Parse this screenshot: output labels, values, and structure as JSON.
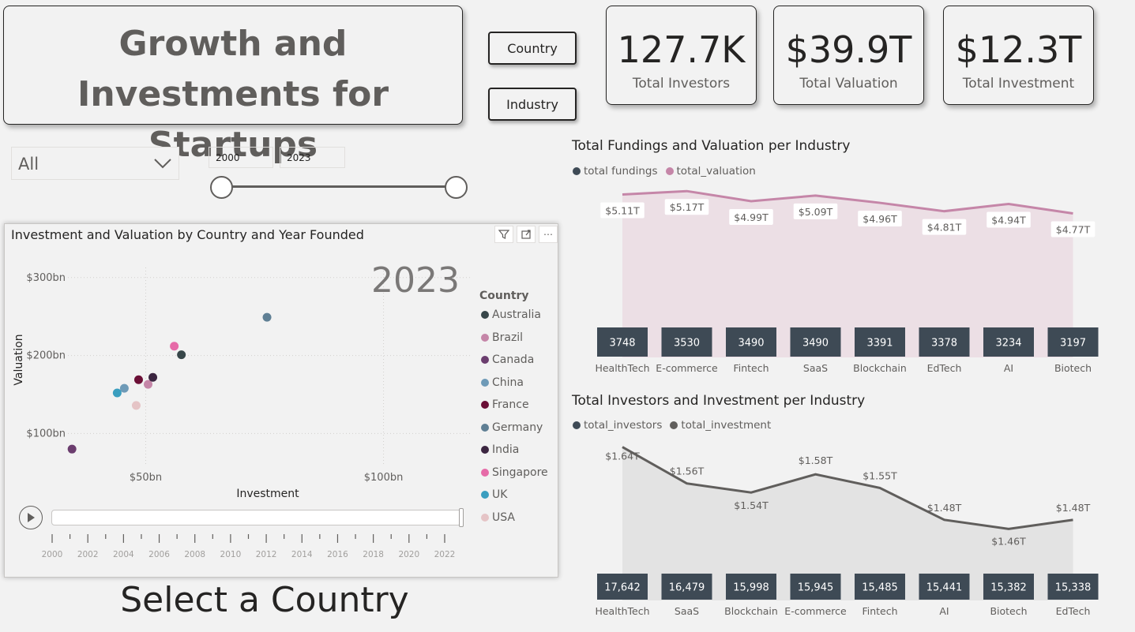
{
  "title": "Growth and Investments for Startups",
  "buttons": {
    "country": "Country",
    "industry": "Industry"
  },
  "kpis": [
    {
      "value": "127.7K",
      "label": "Total Investors"
    },
    {
      "value": "$39.9T",
      "label": "Total Valuation"
    },
    {
      "value": "$12.3T",
      "label": "Total Investment"
    }
  ],
  "filters": {
    "country_dropdown": "All",
    "year_range": {
      "start": "2000",
      "end": "2023",
      "value_start": 2000,
      "value_end": 2023
    }
  },
  "scatter": {
    "title": "Investment and Valuation by Country and Year Founded",
    "play_year": "2023",
    "legend_title": "Country",
    "xlabel": "Investment",
    "ylabel": "Valuation",
    "timeline_ticks": [
      "2000",
      "2002",
      "2004",
      "2006",
      "2008",
      "2010",
      "2012",
      "2014",
      "2016",
      "2018",
      "2020",
      "2022"
    ],
    "timeline_position": 1.0,
    "header_icons": [
      "filter-icon",
      "focus-mode-icon",
      "more-options-icon"
    ]
  },
  "bottom_caption": "Select a Country",
  "chart_data": [
    {
      "type": "scatter",
      "title": "Investment and Valuation by Country and Year Founded",
      "xlabel": "Investment",
      "ylabel": "Valuation",
      "xlim": [
        27,
        120
      ],
      "ylim": [
        65,
        320
      ],
      "x_ticks": [
        50,
        100
      ],
      "x_tick_labels": [
        "$50bn",
        "$100bn"
      ],
      "y_ticks": [
        100,
        200,
        300
      ],
      "y_tick_labels": [
        "$100bn",
        "$200bn",
        "$300bn"
      ],
      "grid": true,
      "legend": "right",
      "series": [
        {
          "name": "Australia",
          "color": "#374649",
          "x": 57.5,
          "y": 201
        },
        {
          "name": "Brazil",
          "color": "#c586a8",
          "x": 50.5,
          "y": 163
        },
        {
          "name": "Canada",
          "color": "#6b3d6e",
          "x": 34.5,
          "y": 80
        },
        {
          "name": "China",
          "color": "#6e9ab7",
          "x": 45.5,
          "y": 158
        },
        {
          "name": "France",
          "color": "#6b0f36",
          "x": 48.5,
          "y": 169
        },
        {
          "name": "Germany",
          "color": "#5f7f94",
          "x": 75.5,
          "y": 249
        },
        {
          "name": "India",
          "color": "#3b2540",
          "x": 51.5,
          "y": 172
        },
        {
          "name": "Singapore",
          "color": "#e66ba8",
          "x": 56,
          "y": 212
        },
        {
          "name": "UK",
          "color": "#3a9ebf",
          "x": 44,
          "y": 152
        },
        {
          "name": "USA",
          "color": "#e5c4c6",
          "x": 48,
          "y": 136
        }
      ]
    },
    {
      "type": "bar",
      "title": "Total Fundings and Valuation per Industry",
      "categories": [
        "HealthTech",
        "E-commerce",
        "Fintech",
        "SaaS",
        "Blockchain",
        "EdTech",
        "AI",
        "Biotech"
      ],
      "series": [
        {
          "name": "total fundings",
          "kind": "bar",
          "color": "#3e4a55",
          "values": [
            3748,
            3530,
            3490,
            3490,
            3391,
            3378,
            3234,
            3197
          ],
          "labels": [
            "3748",
            "3530",
            "3490",
            "3490",
            "3391",
            "3378",
            "3234",
            "3197"
          ]
        },
        {
          "name": "total_valuation",
          "kind": "line",
          "color": "#c586a8",
          "values": [
            5.11,
            5.17,
            4.99,
            5.09,
            4.96,
            4.81,
            4.94,
            4.77
          ],
          "labels": [
            "$5.11T",
            "$5.17T",
            "$4.99T",
            "$5.09T",
            "$4.96T",
            "$4.81T",
            "$4.94T",
            "$4.77T"
          ]
        }
      ],
      "legend": "top-left"
    },
    {
      "type": "bar",
      "title": "Total Investors and Investment per Industry",
      "categories": [
        "HealthTech",
        "SaaS",
        "Blockchain",
        "E-commerce",
        "Fintech",
        "AI",
        "Biotech",
        "EdTech"
      ],
      "series": [
        {
          "name": "total_investors",
          "kind": "bar",
          "color": "#3e4a55",
          "values": [
            17642,
            16479,
            15998,
            15945,
            15485,
            15441,
            15382,
            15338
          ],
          "labels": [
            "17,642",
            "16,479",
            "15,998",
            "15,945",
            "15,485",
            "15,441",
            "15,382",
            "15,338"
          ]
        },
        {
          "name": "total_investment",
          "kind": "line",
          "color": "#605e5c",
          "values": [
            1.64,
            1.56,
            1.54,
            1.58,
            1.55,
            1.48,
            1.46,
            1.48
          ],
          "labels": [
            "$1.64T",
            "$1.56T",
            "$1.54T",
            "$1.58T",
            "$1.55T",
            "$1.48T",
            "$1.46T",
            "$1.48T"
          ]
        }
      ],
      "legend": "top-left"
    }
  ]
}
